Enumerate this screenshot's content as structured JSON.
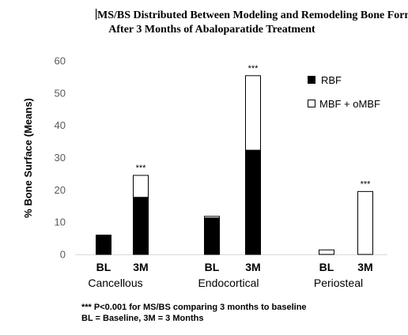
{
  "chart_data": {
    "type": "bar",
    "stacked": true,
    "title": "MS/BS Distributed Between Modeling and Remodeling Bone Formation",
    "subtitle": "After 3 Months of Abaloparatide Treatment",
    "ylabel": "% Bone Surface (Means)",
    "xlabel": "",
    "ylim": [
      0,
      60
    ],
    "yticks": [
      "0",
      "10",
      "20",
      "30",
      "40",
      "50",
      "60"
    ],
    "grid": false,
    "legend_position": "top-right",
    "groups": [
      {
        "label": "Cancellous",
        "categories": [
          "BL",
          "3M"
        ]
      },
      {
        "label": "Endocortical",
        "categories": [
          "BL",
          "3M"
        ]
      },
      {
        "label": "Periosteal",
        "categories": [
          "BL",
          "3M"
        ]
      }
    ],
    "categories": [
      "BL",
      "3M",
      "BL",
      "3M",
      "BL",
      "3M"
    ],
    "series": [
      {
        "name": "RBF",
        "color": "#000000",
        "values": [
          6,
          17.7,
          11.3,
          32.3,
          0,
          0
        ]
      },
      {
        "name": "MBF + oMBF",
        "color": "#ffffff",
        "values": [
          0,
          6.8,
          0.5,
          23.1,
          1.4,
          19.5
        ]
      }
    ],
    "significance_marker": "***",
    "significance_annotations": [
      {
        "category_index": 1,
        "text": "***"
      },
      {
        "category_index": 3,
        "text": "***"
      },
      {
        "category_index": 5,
        "text": "***"
      }
    ],
    "footnotes": [
      "*** P<0.001 for MS/BS comparing 3 months to baseline",
      "BL = Baseline, 3M = 3 Months"
    ]
  }
}
